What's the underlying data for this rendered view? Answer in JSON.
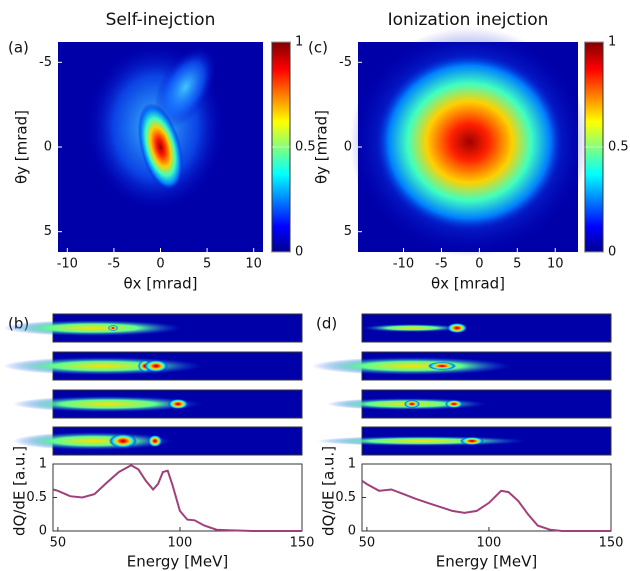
{
  "chart_data": [
    {
      "type": "heatmap",
      "panel_label": "(a)",
      "title": "Self-inejction",
      "xlabel": "θx [mrad]",
      "ylabel": "θy [mrad]",
      "xlim": [
        -11,
        11
      ],
      "xticks": [
        -10,
        -5,
        0,
        5,
        10
      ],
      "ylim": [
        -6.2,
        6.2
      ],
      "yticks": [
        -5,
        0,
        5
      ],
      "colorbar_lim": [
        0,
        1
      ],
      "colorbar_ticks": [
        0,
        0.5,
        1
      ]
    },
    {
      "type": "line",
      "panel_label": "(b)",
      "xlabel": "Energy [MeV]",
      "ylabel": "dQ/dE [a.u.]",
      "color": "#a0407a",
      "x": [
        48,
        50,
        55,
        60,
        65,
        70,
        75,
        80,
        83,
        86,
        89,
        91,
        93,
        95,
        97,
        100,
        103,
        106,
        110,
        115,
        120,
        130,
        150
      ],
      "values": [
        0.62,
        0.6,
        0.52,
        0.5,
        0.55,
        0.72,
        0.88,
        0.98,
        0.92,
        0.75,
        0.62,
        0.7,
        0.88,
        0.9,
        0.68,
        0.3,
        0.17,
        0.16,
        0.08,
        0.02,
        0.01,
        0,
        0
      ],
      "xlim": [
        48,
        150
      ],
      "xticks": [
        50,
        100,
        150
      ],
      "ylim": [
        0,
        1
      ],
      "yticks": [
        0,
        0.5,
        1
      ]
    },
    {
      "type": "heatmap",
      "panel_label": "(c)",
      "title": "Ionization inejction",
      "xlabel": "θx [mrad]",
      "ylabel": "θy [mrad]",
      "xlim": [
        -16,
        13
      ],
      "xticks": [
        -10,
        -5,
        0,
        5,
        10
      ],
      "ylim": [
        -6.2,
        6.2
      ],
      "yticks": [
        -5,
        0,
        5
      ],
      "colorbar_lim": [
        0,
        1
      ],
      "colorbar_ticks": [
        0,
        0.5,
        1
      ]
    },
    {
      "type": "line",
      "panel_label": "(d)",
      "xlabel": "Energy [MeV]",
      "ylabel": "dQ/dE [a.u.]",
      "color": "#a0407a",
      "x": [
        48,
        50,
        55,
        60,
        65,
        70,
        75,
        80,
        85,
        90,
        95,
        100,
        105,
        108,
        112,
        116,
        120,
        125,
        130,
        150
      ],
      "values": [
        0.75,
        0.7,
        0.6,
        0.62,
        0.55,
        0.48,
        0.42,
        0.36,
        0.3,
        0.27,
        0.3,
        0.42,
        0.6,
        0.58,
        0.45,
        0.25,
        0.08,
        0.02,
        0,
        0
      ],
      "xlim": [
        48,
        150
      ],
      "xticks": [
        50,
        100,
        150
      ],
      "ylim": [
        0,
        1
      ],
      "yticks": [
        0,
        0.5,
        1
      ]
    }
  ]
}
